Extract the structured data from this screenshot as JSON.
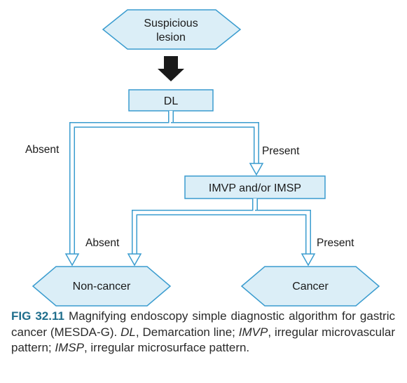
{
  "nodes": {
    "suspicious_lesion": [
      "Suspicious",
      "lesion"
    ],
    "dl": "DL",
    "imvp_imsp": "IMVP and/or IMSP",
    "non_cancer": "Non-cancer",
    "cancer": "Cancer"
  },
  "edges": {
    "dl_absent": "Absent",
    "dl_present": "Present",
    "imvp_absent": "Absent",
    "imvp_present": "Present"
  },
  "caption": {
    "label": "FIG 32.11",
    "text": "Magnifying endoscopy simple diagnostic algorithm for gastric cancer (MESDA-G).",
    "abbreviations": [
      {
        "term": "DL",
        "definition": "Demarcation line;"
      },
      {
        "term": "IMVP",
        "definition": "irregular microvascular pattern;"
      },
      {
        "term": "IMSP",
        "definition": "irregular microsurface pattern."
      }
    ]
  },
  "colors": {
    "node_fill": "#dbeef7",
    "node_stroke": "#3a9ccf",
    "arrow_dark": "#1a1a1a",
    "caption_label": "#1f6e8c"
  }
}
